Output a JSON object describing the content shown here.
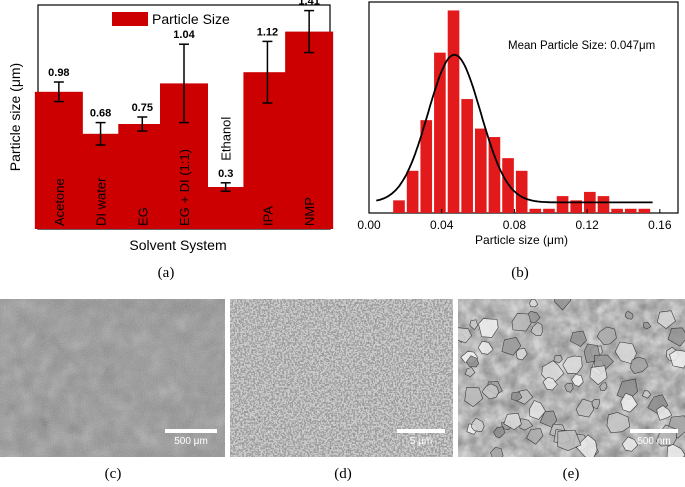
{
  "chart_data": [
    {
      "type": "bar",
      "panel": "(a)",
      "xlabel": "Solvent System",
      "ylabel": "Particle size (μm)",
      "legend": {
        "label": "Particle Size",
        "placement": "top-center"
      },
      "color": "#cc0000",
      "ylim": [
        0,
        1.6
      ],
      "categories": [
        "Acetone",
        "DI water",
        "EG",
        "EG + DI (1:1)",
        "Ethanol",
        "IPA",
        "NMP"
      ],
      "values": [
        0.98,
        0.68,
        0.75,
        1.04,
        0.3,
        1.12,
        1.41
      ],
      "value_labels": [
        "0.98",
        "0.68",
        "0.75",
        "1.04",
        "0.3",
        "1.12",
        "1.41"
      ],
      "errors": [
        0.07,
        0.08,
        0.05,
        0.28,
        0.03,
        0.22,
        0.15
      ]
    },
    {
      "type": "bar",
      "panel": "(b)",
      "subtype": "histogram with fitted curve",
      "xlabel": "Particle size (μm)",
      "annotation": "Mean Particle Size: 0.047μm",
      "color": "#e31a1c",
      "xlim": [
        0.0,
        0.17
      ],
      "xticks": [
        "0.00",
        "0.04",
        "0.08",
        "0.12",
        "0.16"
      ],
      "bin_width": 0.0075,
      "bin_centers": [
        0.0165,
        0.024,
        0.0315,
        0.039,
        0.0465,
        0.054,
        0.0615,
        0.069,
        0.0765,
        0.084,
        0.0915,
        0.099,
        0.1065,
        0.114,
        0.1215,
        0.129,
        0.1365,
        0.144,
        0.1515
      ],
      "counts": [
        3,
        10,
        22,
        38,
        48,
        27,
        20,
        18,
        13,
        10,
        1,
        1,
        4,
        3,
        5,
        4,
        1,
        1,
        1
      ],
      "fit_curve": {
        "type": "gaussian",
        "mean": 0.047,
        "sigma": 0.0145,
        "peak": 37.5,
        "baseline": 2.5,
        "x_range": [
          0.004,
          0.156
        ]
      }
    }
  ],
  "captions": [
    "(a)",
    "(b)",
    "(c)",
    "(d)",
    "(e)"
  ],
  "micrographs": [
    {
      "panel": "(c)",
      "scale_label": "500 μm"
    },
    {
      "panel": "(d)",
      "scale_label": "5 μm"
    },
    {
      "panel": "(e)",
      "scale_label": "500 nm"
    }
  ]
}
